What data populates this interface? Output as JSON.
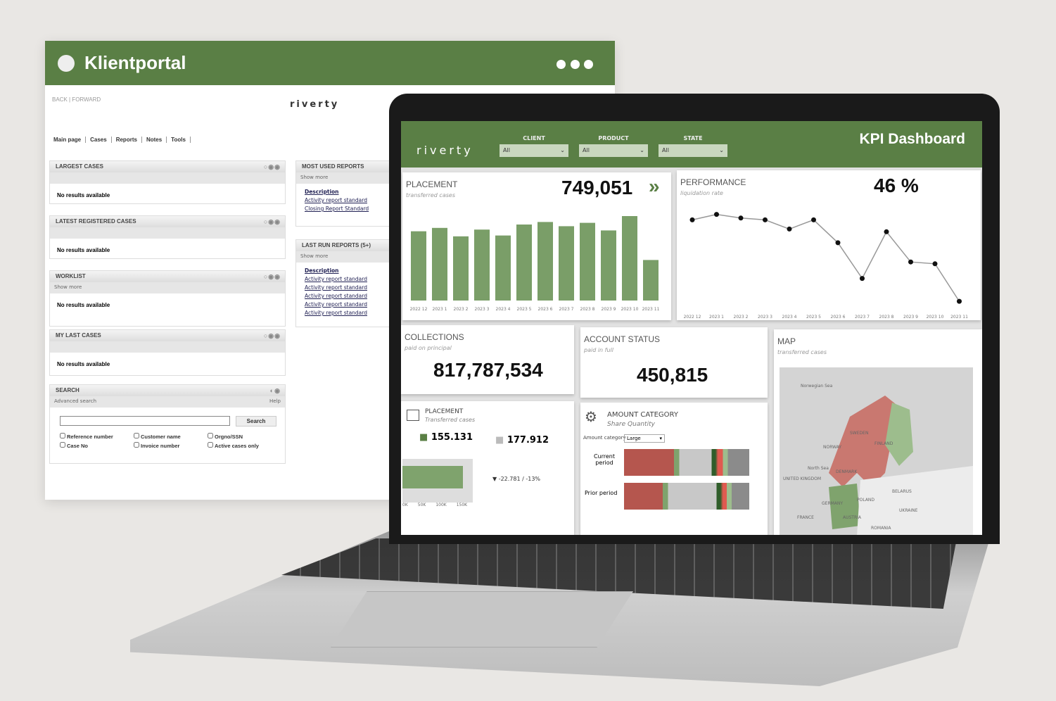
{
  "portal": {
    "title": "Klientportal",
    "nav_back": "BACK | FORWARD",
    "logo": "riverty",
    "menu": [
      "Main page",
      "Cases",
      "Reports",
      "Notes",
      "Tools"
    ],
    "widgets": [
      {
        "title": "LARGEST CASES",
        "body": "No results available"
      },
      {
        "title": "LATEST REGISTERED CASES",
        "body": "No results available"
      },
      {
        "title": "WORKLIST",
        "sub": "Show more",
        "body": "No results available"
      },
      {
        "title": "MY LAST CASES",
        "body": "No results available"
      }
    ],
    "search": {
      "title": "SEARCH",
      "advanced": "Advanced search",
      "help": "Help",
      "button": "Search",
      "value": "",
      "checkboxes": [
        "Reference number",
        "Customer name",
        "Orgno/SSN",
        "Case No",
        "Invoice number",
        "Active cases only"
      ]
    },
    "most_used": {
      "title": "MOST USED REPORTS",
      "show_more": "Show more",
      "header": "Description",
      "links": [
        "Activity report standard",
        "Closing Report Standard"
      ]
    },
    "last_run": {
      "title": "LAST RUN REPORTS (5+)",
      "show_more": "Show more",
      "header": "Description",
      "links": [
        "Activity report standard",
        "Activity report standard",
        "Activity report standard",
        "Activity report standard",
        "Activity report standard"
      ]
    }
  },
  "dashboard": {
    "logo": "riverty",
    "title": "KPI Dashboard",
    "filters": [
      {
        "label": "CLIENT",
        "value": "All"
      },
      {
        "label": "PRODUCT",
        "value": "All"
      },
      {
        "label": "STATE",
        "value": "All"
      }
    ],
    "placement": {
      "title": "PLACEMENT",
      "sub": "transferred cases",
      "value": "749,051",
      "arrow": "»"
    },
    "performance": {
      "title": "PERFORMANCE",
      "sub": "liquidation rate",
      "value": "46 %"
    },
    "collections": {
      "title": "COLLECTIONS",
      "sub": "paid on principal",
      "value": "817,787,534"
    },
    "account_status": {
      "title": "ACCOUNT STATUS",
      "sub": "paid in full",
      "value": "450,815"
    },
    "map": {
      "title": "MAP",
      "sub": "transferred cases",
      "labels": [
        "Norwegian Sea",
        "SWEDEN",
        "NORWAY",
        "FINLAND",
        "North Sea",
        "UNITED KINGDOM",
        "DENMARK",
        "GERMANY",
        "POLAND",
        "BELARUS",
        "UKRAINE",
        "FRANCE",
        "AUSTRIA",
        "ROMANIA"
      ]
    },
    "placement_small": {
      "title": "PLACEMENT",
      "sub": "Transferred cases",
      "current": "155.131",
      "prior": "177.912",
      "delta": "▼ -22.781 / -13%",
      "axis": [
        "0K",
        "50K",
        "100K",
        "150K"
      ]
    },
    "amount_category": {
      "title": "AMOUNT CATEGORY",
      "sub": "Share Quantity",
      "filter_label": "Amount category",
      "filter_value": "Large",
      "rows": [
        "Current period",
        "Prior period"
      ]
    }
  },
  "chart_data": [
    {
      "type": "bar",
      "title": "PLACEMENT",
      "categories": [
        "2022 12",
        "2023 1",
        "2023 2",
        "2023 3",
        "2023 4",
        "2023 5",
        "2023 6",
        "2023 7",
        "2023 8",
        "2023 9",
        "2023 10",
        "2023 11"
      ],
      "values": [
        82,
        86,
        76,
        84,
        77,
        90,
        93,
        88,
        92,
        83,
        100,
        48
      ],
      "color": "#7a9e68"
    },
    {
      "type": "line",
      "title": "PERFORMANCE",
      "categories": [
        "2022 12",
        "2023 1",
        "2023 2",
        "2023 3",
        "2023 4",
        "2023 5",
        "2023 6",
        "2023 7",
        "2023 8",
        "2023 9",
        "2023 10",
        "2023 11"
      ],
      "values": [
        92,
        98,
        94,
        92,
        82,
        92,
        67,
        28,
        79,
        46,
        44,
        3
      ]
    }
  ],
  "colors": {
    "green": "#5a7f45",
    "red": "#b5564e",
    "gray": "#c8c8c8"
  }
}
